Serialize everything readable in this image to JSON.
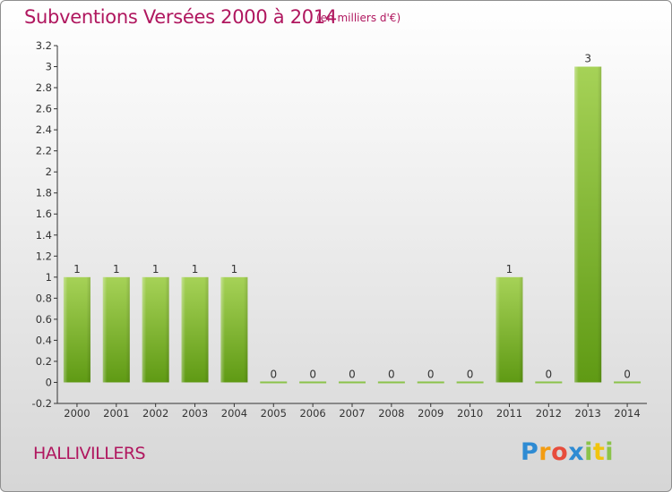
{
  "header": {
    "title": "Subventions Versées 2000 à 2014",
    "subtitle": "(en milliers d'€)"
  },
  "footer": {
    "commune": "HALLIVILLERS",
    "logo": "Proxiti"
  },
  "colors": {
    "title": "#b0175f",
    "bar_light": "#a6d257",
    "bar_dark": "#5f9a14",
    "axis": "#333333"
  },
  "chart_data": {
    "type": "bar",
    "title": "Subventions Versées 2000 à 2014",
    "xlabel": "",
    "ylabel": "",
    "categories": [
      "2000",
      "2001",
      "2002",
      "2003",
      "2004",
      "2005",
      "2006",
      "2007",
      "2008",
      "2009",
      "2010",
      "2011",
      "2012",
      "2013",
      "2014"
    ],
    "values": [
      1,
      1,
      1,
      1,
      1,
      0,
      0,
      0,
      0,
      0,
      0,
      1,
      0,
      3,
      0
    ],
    "data_labels": [
      "1",
      "1",
      "1",
      "1",
      "1",
      "0",
      "0",
      "0",
      "0",
      "0",
      "0",
      "1",
      "0",
      "3",
      "0"
    ],
    "ylim": [
      -0.2,
      3.2
    ],
    "yticks": [
      "-0.2",
      "0",
      "0.2",
      "0.4",
      "0.6",
      "0.8",
      "1",
      "1.2",
      "1.4",
      "1.6",
      "1.8",
      "2",
      "2.2",
      "2.4",
      "2.6",
      "2.8",
      "3",
      "3.2"
    ],
    "grid": false,
    "legend": "none"
  }
}
